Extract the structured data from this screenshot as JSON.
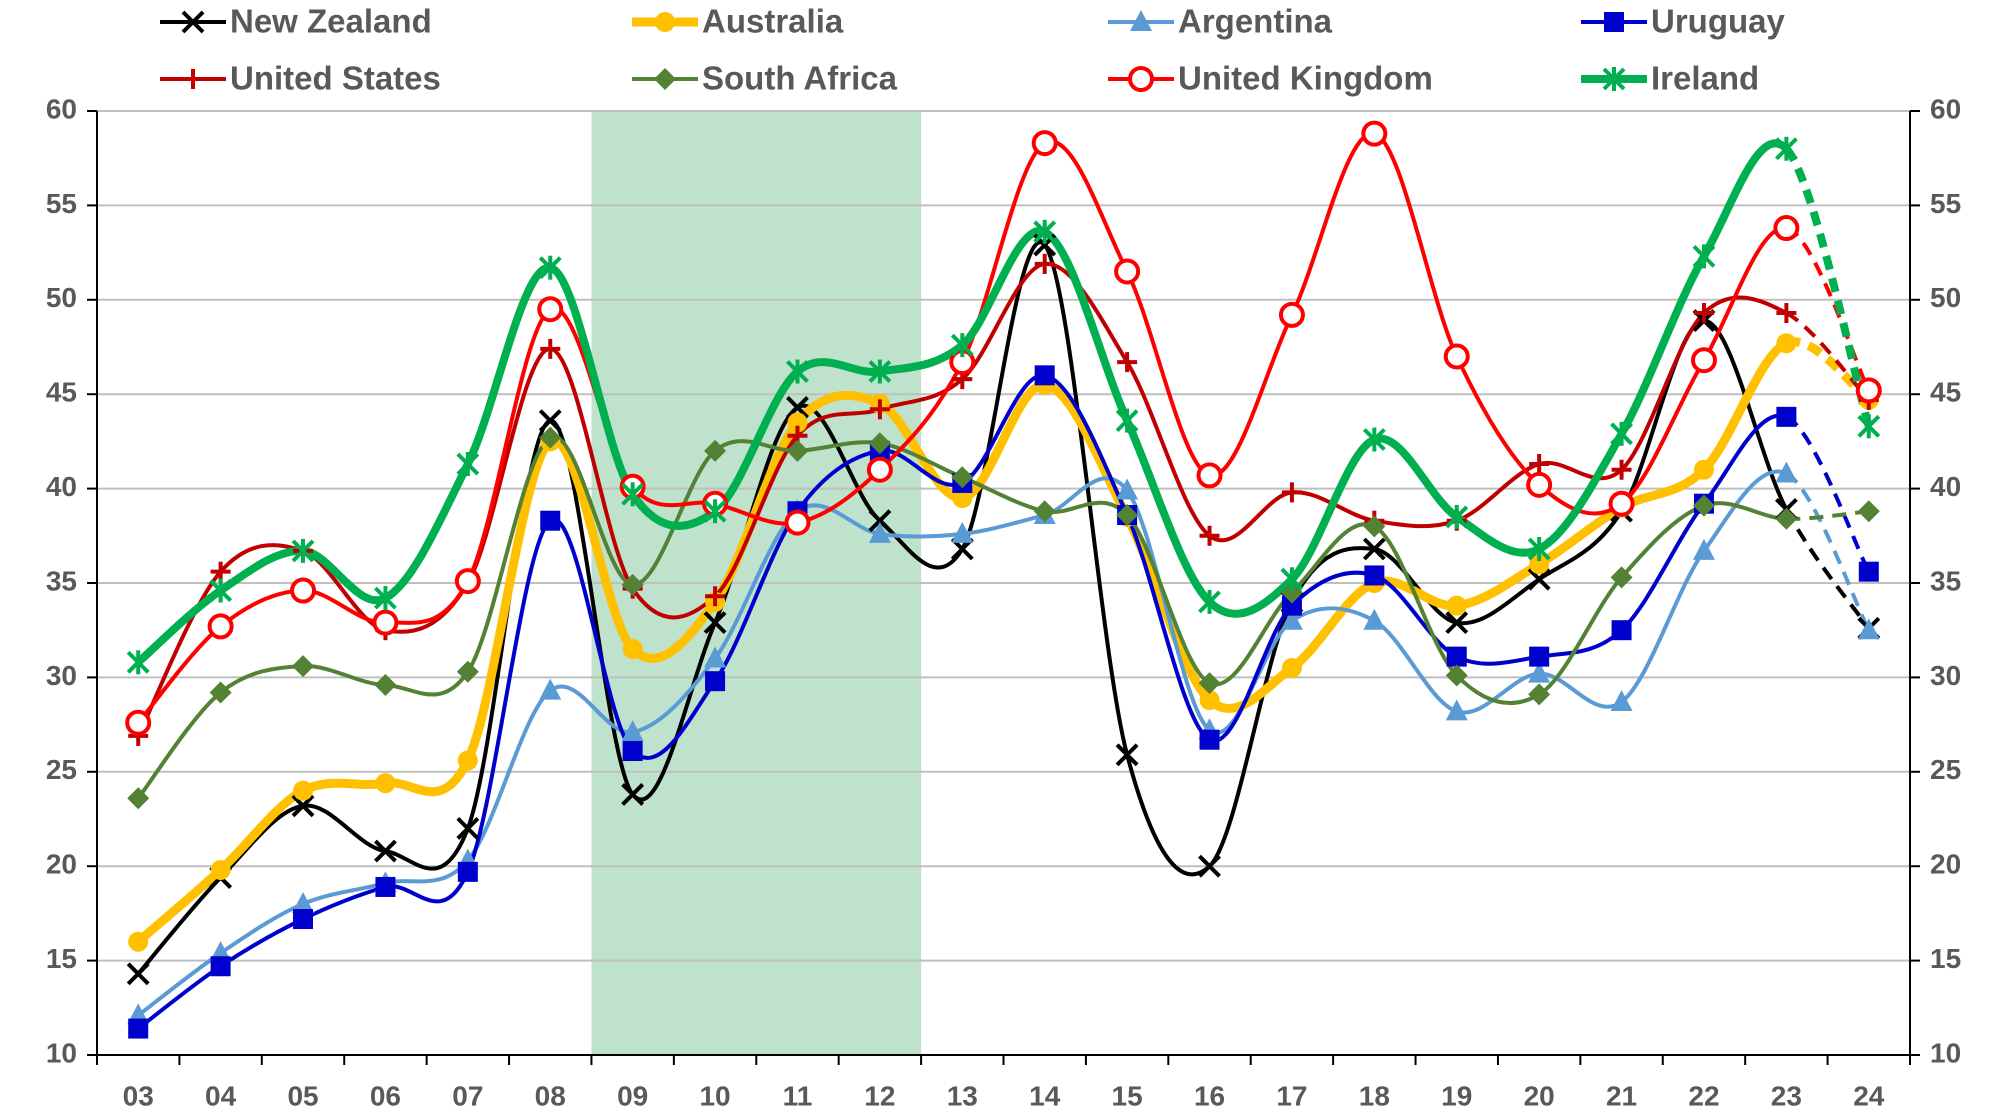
{
  "chart_data": {
    "type": "line",
    "smooth": true,
    "dashed_last_segment": true,
    "grid": true,
    "highlight": {
      "from": "09",
      "to": "12",
      "color": "#bfe2cd"
    },
    "categories": [
      "03",
      "04",
      "05",
      "06",
      "07",
      "08",
      "09",
      "10",
      "11",
      "12",
      "13",
      "14",
      "15",
      "16",
      "17",
      "18",
      "19",
      "20",
      "21",
      "22",
      "23",
      "24"
    ],
    "ylim": [
      10,
      60
    ],
    "yticks": [
      10,
      15,
      20,
      25,
      30,
      35,
      40,
      45,
      50,
      55,
      60
    ],
    "series": [
      {
        "name": "New Zealand",
        "color": "#000000",
        "marker": "x",
        "width": 4,
        "values": [
          14.3,
          19.4,
          23.2,
          20.8,
          22.0,
          43.6,
          23.8,
          32.9,
          44.3,
          38.3,
          36.8,
          52.9,
          25.9,
          20.0,
          34.0,
          36.8,
          32.9,
          35.2,
          38.8,
          48.9,
          38.9,
          32.6
        ]
      },
      {
        "name": "Australia",
        "color": "#ffc000",
        "marker": "dot",
        "width": 9,
        "values": [
          16.0,
          19.8,
          24.0,
          24.4,
          25.6,
          42.5,
          31.5,
          34.0,
          43.5,
          44.5,
          39.5,
          45.5,
          38.5,
          28.8,
          30.5,
          35.0,
          33.8,
          36.0,
          39.0,
          41.0,
          47.7,
          44.7
        ]
      },
      {
        "name": "Argentina",
        "color": "#5b9bd5",
        "marker": "triangle",
        "width": 4,
        "values": [
          12.1,
          15.4,
          18.0,
          19.1,
          20.3,
          29.3,
          27.1,
          31.0,
          38.8,
          37.6,
          37.6,
          38.6,
          39.9,
          27.2,
          33.0,
          33.0,
          28.2,
          30.2,
          28.7,
          36.7,
          40.8,
          32.5
        ]
      },
      {
        "name": "Uruguay",
        "color": "#0000cc",
        "marker": "square",
        "width": 4,
        "values": [
          11.4,
          14.7,
          17.2,
          18.9,
          19.7,
          38.3,
          26.1,
          29.8,
          38.8,
          42.0,
          40.3,
          46.0,
          38.6,
          26.7,
          33.8,
          35.4,
          31.1,
          31.1,
          32.5,
          39.2,
          43.8,
          35.6
        ]
      },
      {
        "name": "United States",
        "color": "#c00000",
        "marker": "plus",
        "width": 4,
        "values": [
          26.9,
          35.6,
          36.7,
          32.5,
          35.0,
          47.4,
          34.7,
          34.3,
          42.8,
          44.2,
          45.8,
          51.9,
          46.7,
          37.5,
          39.8,
          38.3,
          38.3,
          41.3,
          41.0,
          49.3,
          49.3,
          44.7
        ]
      },
      {
        "name": "South Africa",
        "color": "#548235",
        "marker": "diamond",
        "width": 4,
        "values": [
          23.6,
          29.2,
          30.6,
          29.6,
          30.3,
          42.7,
          34.9,
          42.0,
          42.0,
          42.4,
          40.6,
          38.8,
          38.6,
          29.7,
          34.5,
          38.0,
          30.1,
          29.1,
          35.3,
          39.1,
          38.4,
          38.8
        ]
      },
      {
        "name": "United Kingdom",
        "color": "#ff0000",
        "marker": "ring",
        "width": 4,
        "values": [
          27.6,
          32.7,
          34.6,
          32.9,
          35.1,
          49.5,
          40.1,
          39.2,
          38.2,
          41.0,
          46.7,
          58.3,
          51.5,
          40.7,
          49.2,
          58.8,
          47.0,
          40.2,
          39.2,
          46.8,
          53.8,
          45.2
        ]
      },
      {
        "name": "Ireland",
        "color": "#00b050",
        "marker": "star",
        "width": 8,
        "values": [
          30.8,
          34.6,
          36.7,
          34.2,
          41.3,
          51.7,
          39.7,
          38.8,
          46.2,
          46.2,
          47.6,
          53.6,
          43.6,
          34.0,
          35.2,
          42.6,
          38.5,
          36.8,
          42.9,
          52.3,
          58.0,
          43.3
        ]
      }
    ]
  }
}
